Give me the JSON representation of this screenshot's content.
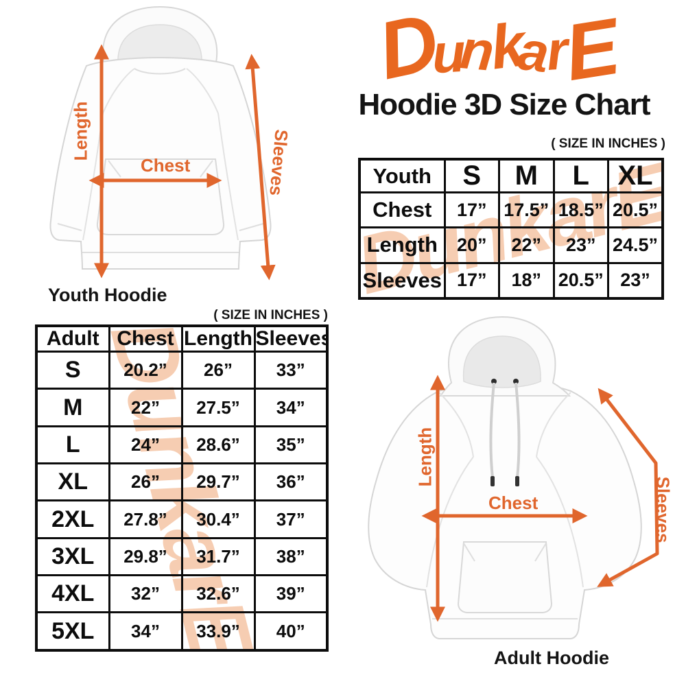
{
  "brand": {
    "logo_text": "DunkarE",
    "logo_color": "#e8671f"
  },
  "title": "Hoodie 3D Size Chart",
  "size_note": "( SIZE IN INCHES )",
  "watermark_text": "DunkarE",
  "colors": {
    "accent_orange": "#e0662d",
    "watermark_peach": "#f6cdb2",
    "table_border": "#0c0c0c"
  },
  "youth_figure": {
    "caption": "Youth Hoodie",
    "length_label": "Length",
    "chest_label": "Chest",
    "sleeves_label": "Sleeves"
  },
  "adult_figure": {
    "caption": "Adult Hoodie",
    "length_label": "Length",
    "chest_label": "Chest",
    "sleeves_label": "Sleeves"
  },
  "youth_table": {
    "columns": [
      "Youth",
      "S",
      "M",
      "L",
      "XL"
    ],
    "rows": [
      [
        "Chest",
        "17”",
        "17.5”",
        "18.5”",
        "20.5”"
      ],
      [
        "Length",
        "20”",
        "22”",
        "23”",
        "24.5”"
      ],
      [
        "Sleeves",
        "17”",
        "18”",
        "20.5”",
        "23”"
      ]
    ]
  },
  "adult_table": {
    "columns": [
      "Adult",
      "Chest",
      "Length",
      "Sleeves"
    ],
    "rows": [
      [
        "S",
        "20.2”",
        "26”",
        "33”"
      ],
      [
        "M",
        "22”",
        "27.5”",
        "34”"
      ],
      [
        "L",
        "24”",
        "28.6”",
        "35”"
      ],
      [
        "XL",
        "26”",
        "29.7”",
        "36”"
      ],
      [
        "2XL",
        "27.8”",
        "30.4”",
        "37”"
      ],
      [
        "3XL",
        "29.8”",
        "31.7”",
        "38”"
      ],
      [
        "4XL",
        "32”",
        "32.6”",
        "39”"
      ],
      [
        "5XL",
        "34”",
        "33.9”",
        "40”"
      ]
    ]
  },
  "chart_data": [
    {
      "type": "table",
      "title": "Youth Hoodie ( SIZE IN INCHES )",
      "columns": [
        "Youth",
        "S",
        "M",
        "L",
        "XL"
      ],
      "rows": [
        [
          "Chest",
          17,
          17.5,
          18.5,
          20.5
        ],
        [
          "Length",
          20,
          22,
          23,
          24.5
        ],
        [
          "Sleeves",
          17,
          18,
          20.5,
          23
        ]
      ]
    },
    {
      "type": "table",
      "title": "Adult Hoodie ( SIZE IN INCHES )",
      "columns": [
        "Adult",
        "Chest",
        "Length",
        "Sleeves"
      ],
      "rows": [
        [
          "S",
          20.2,
          26,
          33
        ],
        [
          "M",
          22,
          27.5,
          34
        ],
        [
          "L",
          24,
          28.6,
          35
        ],
        [
          "XL",
          26,
          29.7,
          36
        ],
        [
          "2XL",
          27.8,
          30.4,
          37
        ],
        [
          "3XL",
          29.8,
          31.7,
          38
        ],
        [
          "4XL",
          32,
          32.6,
          39
        ],
        [
          "5XL",
          34,
          33.9,
          40
        ]
      ]
    }
  ]
}
